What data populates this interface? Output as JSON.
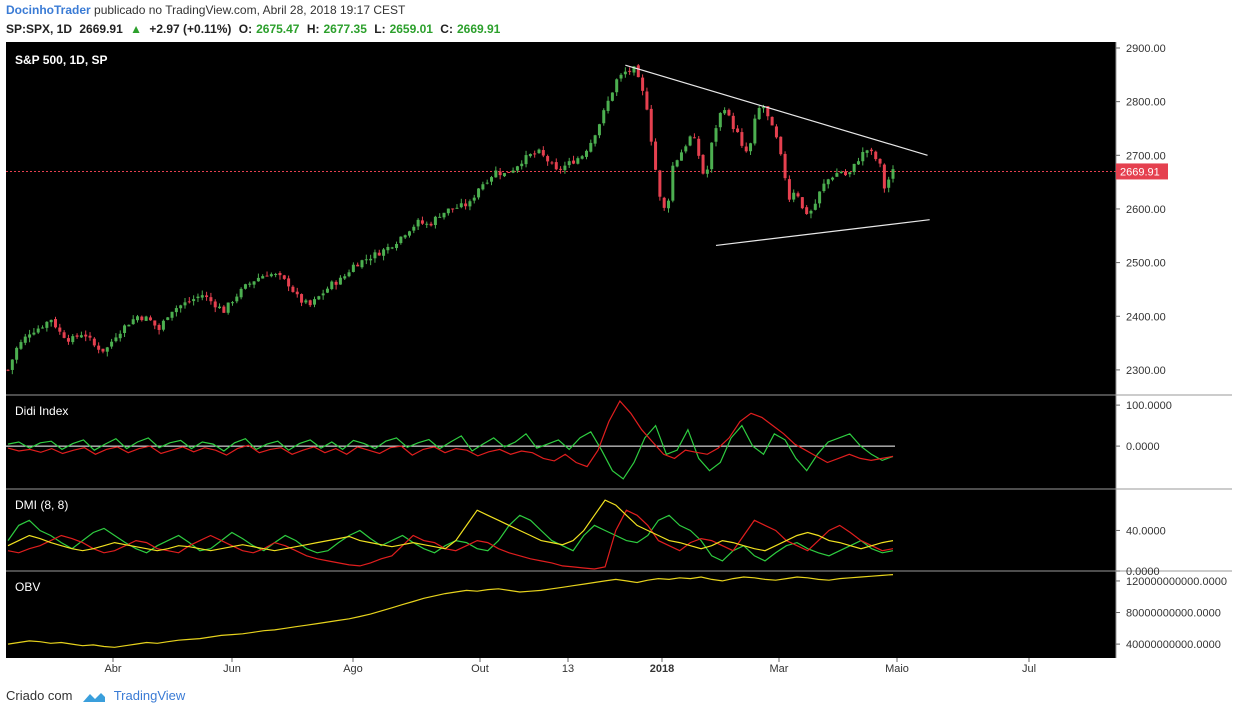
{
  "header": {
    "author": "DocinhoTrader",
    "published": "publicado no TradingView.com, Abril 28, 2018 19:17 CEST",
    "symbol": "SP:SPX, 1D",
    "last": "2669.91",
    "change": "+2.97 (+0.11%)",
    "open_label": "O:",
    "open": "2675.47",
    "high_label": "H:",
    "high": "2677.35",
    "low_label": "L:",
    "low": "2659.01",
    "close_label": "C:",
    "close": "2669.91"
  },
  "footer": {
    "created": "Criado com",
    "brand": "TradingView"
  },
  "colors": {
    "up": "#4caf50",
    "down": "#e5404f",
    "didi_green": "#2ecc40",
    "didi_red": "#e01e1e",
    "dmi_yellow": "#f0e020",
    "obv": "#e6d21c",
    "bg": "#000000"
  },
  "chart_data": [
    {
      "type": "candlestick",
      "title": "S&P 500, 1D, SP",
      "x_ticks": [
        "Abr",
        "Jun",
        "Ago",
        "Out",
        "13",
        "2018",
        "Mar",
        "Maio",
        "Jul"
      ],
      "y_ticks": [
        "2900.00",
        "2800.00",
        "2700.00",
        "2600.00",
        "2500.00",
        "2400.00",
        "2300.00"
      ],
      "ylim": [
        2270,
        2900
      ],
      "last_price_label": "2669.91",
      "last_price": 2669.91,
      "close_path": [
        [
          0,
          2300
        ],
        [
          8,
          2340
        ],
        [
          20,
          2370
        ],
        [
          30,
          2380
        ],
        [
          40,
          2395
        ],
        [
          48,
          2370
        ],
        [
          58,
          2355
        ],
        [
          70,
          2370
        ],
        [
          80,
          2345
        ],
        [
          90,
          2335
        ],
        [
          100,
          2365
        ],
        [
          110,
          2385
        ],
        [
          120,
          2400
        ],
        [
          130,
          2395
        ],
        [
          140,
          2375
        ],
        [
          150,
          2410
        ],
        [
          160,
          2420
        ],
        [
          170,
          2430
        ],
        [
          180,
          2440
        ],
        [
          190,
          2425
        ],
        [
          200,
          2410
        ],
        [
          210,
          2435
        ],
        [
          220,
          2455
        ],
        [
          230,
          2470
        ],
        [
          240,
          2480
        ],
        [
          250,
          2475
        ],
        [
          260,
          2460
        ],
        [
          270,
          2430
        ],
        [
          280,
          2420
        ],
        [
          290,
          2440
        ],
        [
          300,
          2460
        ],
        [
          310,
          2470
        ],
        [
          320,
          2495
        ],
        [
          330,
          2505
        ],
        [
          340,
          2515
        ],
        [
          350,
          2525
        ],
        [
          360,
          2540
        ],
        [
          370,
          2560
        ],
        [
          380,
          2575
        ],
        [
          390,
          2570
        ],
        [
          400,
          2590
        ],
        [
          410,
          2600
        ],
        [
          420,
          2605
        ],
        [
          428,
          2610
        ],
        [
          436,
          2640
        ],
        [
          444,
          2655
        ],
        [
          452,
          2670
        ],
        [
          460,
          2665
        ],
        [
          468,
          2675
        ],
        [
          476,
          2690
        ],
        [
          484,
          2700
        ],
        [
          492,
          2705
        ],
        [
          500,
          2690
        ],
        [
          508,
          2670
        ],
        [
          516,
          2680
        ],
        [
          524,
          2690
        ],
        [
          532,
          2700
        ],
        [
          540,
          2725
        ],
        [
          548,
          2760
        ],
        [
          556,
          2800
        ],
        [
          564,
          2840
        ],
        [
          572,
          2855
        ],
        [
          580,
          2860
        ],
        [
          586,
          2830
        ],
        [
          592,
          2790
        ],
        [
          598,
          2700
        ],
        [
          604,
          2620
        ],
        [
          610,
          2590
        ],
        [
          616,
          2680
        ],
        [
          622,
          2700
        ],
        [
          628,
          2720
        ],
        [
          634,
          2740
        ],
        [
          640,
          2700
        ],
        [
          646,
          2650
        ],
        [
          652,
          2720
        ],
        [
          658,
          2770
        ],
        [
          664,
          2790
        ],
        [
          670,
          2760
        ],
        [
          676,
          2740
        ],
        [
          682,
          2700
        ],
        [
          688,
          2720
        ],
        [
          694,
          2785
        ],
        [
          700,
          2790
        ],
        [
          706,
          2760
        ],
        [
          712,
          2730
        ],
        [
          718,
          2680
        ],
        [
          724,
          2620
        ],
        [
          730,
          2640
        ],
        [
          736,
          2600
        ],
        [
          742,
          2590
        ],
        [
          748,
          2610
        ],
        [
          754,
          2640
        ],
        [
          760,
          2655
        ],
        [
          766,
          2665
        ],
        [
          772,
          2670
        ],
        [
          778,
          2660
        ],
        [
          784,
          2680
        ],
        [
          790,
          2700
        ],
        [
          796,
          2710
        ],
        [
          802,
          2700
        ],
        [
          808,
          2680
        ],
        [
          812,
          2640
        ],
        [
          816,
          2655
        ],
        [
          820,
          2670
        ]
      ],
      "trendlines": [
        {
          "from": [
            572,
            2868
          ],
          "to": [
            852,
            2700
          ]
        },
        {
          "from": [
            656,
            2532
          ],
          "to": [
            854,
            2580
          ]
        }
      ]
    },
    {
      "type": "line",
      "title": "Didi Index",
      "y_ticks": [
        "100.0000",
        "0.0000"
      ],
      "ylim": [
        -90,
        110
      ],
      "series": [
        {
          "color": "#2ecc40",
          "values": [
            5,
            10,
            -5,
            8,
            12,
            -8,
            6,
            15,
            -10,
            5,
            18,
            -6,
            10,
            20,
            -4,
            8,
            14,
            -6,
            10,
            5,
            -12,
            8,
            18,
            -8,
            5,
            12,
            -10,
            6,
            15,
            -5,
            10,
            -8,
            14,
            6,
            -6,
            12,
            20,
            -3,
            8,
            16,
            -6,
            10,
            25,
            -12,
            5,
            20,
            -2,
            10,
            30,
            -5,
            5,
            15,
            -8,
            20,
            35,
            -10,
            -60,
            -80,
            -40,
            20,
            50,
            -20,
            -10,
            40,
            -30,
            -60,
            -40,
            20,
            50,
            0,
            -20,
            30,
            15,
            -30,
            -60,
            -20,
            10,
            20,
            30,
            0,
            -20,
            -35,
            -25
          ]
        },
        {
          "color": "#e01e1e",
          "values": [
            -5,
            -12,
            -8,
            -15,
            -6,
            -18,
            -10,
            -4,
            -20,
            -8,
            -2,
            -16,
            -6,
            0,
            -18,
            -10,
            -2,
            -14,
            -4,
            -10,
            -22,
            -6,
            2,
            -16,
            -8,
            -4,
            -20,
            -10,
            -2,
            -16,
            -6,
            -20,
            -2,
            -10,
            -18,
            -4,
            0,
            -22,
            -8,
            -2,
            -16,
            -6,
            -10,
            -24,
            -14,
            -8,
            -20,
            -12,
            -16,
            -30,
            -36,
            -20,
            -40,
            -50,
            -10,
            60,
            110,
            80,
            40,
            10,
            -20,
            -30,
            -10,
            -15,
            -20,
            -5,
            20,
            60,
            80,
            70,
            50,
            30,
            5,
            -10,
            -25,
            -40,
            -30,
            -20,
            -30,
            -35,
            -30,
            -25
          ]
        }
      ],
      "zero_line_color": "#ffffff"
    },
    {
      "type": "line",
      "title": "DMI (8, 8)",
      "y_ticks": [
        "40.0000",
        "0.0000"
      ],
      "ylim": [
        0,
        75
      ],
      "series": [
        {
          "color": "#2ecc40",
          "values": [
            30,
            45,
            50,
            40,
            35,
            28,
            22,
            30,
            38,
            42,
            35,
            28,
            22,
            18,
            25,
            30,
            35,
            28,
            20,
            22,
            30,
            38,
            32,
            25,
            20,
            28,
            35,
            30,
            22,
            18,
            20,
            28,
            35,
            40,
            32,
            25,
            30,
            35,
            28,
            22,
            18,
            25,
            30,
            28,
            22,
            20,
            30,
            45,
            55,
            50,
            40,
            30,
            25,
            20,
            35,
            45,
            40,
            35,
            30,
            28,
            35,
            50,
            55,
            45,
            40,
            30,
            15,
            10,
            20,
            25,
            15,
            10,
            18,
            25,
            28,
            22,
            18,
            15,
            20,
            25,
            30,
            22,
            18,
            20
          ]
        },
        {
          "color": "#e01e1e",
          "values": [
            20,
            18,
            22,
            25,
            30,
            35,
            32,
            28,
            22,
            18,
            20,
            25,
            30,
            28,
            22,
            20,
            18,
            25,
            30,
            35,
            30,
            25,
            20,
            18,
            22,
            28,
            25,
            20,
            15,
            12,
            10,
            8,
            6,
            5,
            8,
            12,
            15,
            25,
            35,
            30,
            28,
            22,
            20,
            25,
            30,
            28,
            22,
            18,
            15,
            12,
            10,
            8,
            5,
            4,
            3,
            2,
            4,
            40,
            60,
            55,
            45,
            30,
            25,
            20,
            28,
            32,
            30,
            25,
            20,
            35,
            50,
            45,
            40,
            30,
            25,
            20,
            30,
            40,
            45,
            38,
            30,
            25,
            20,
            22
          ]
        },
        {
          "color": "#f0e020",
          "values": [
            25,
            30,
            35,
            32,
            28,
            25,
            22,
            20,
            22,
            25,
            28,
            26,
            24,
            22,
            20,
            22,
            25,
            24,
            22,
            20,
            22,
            24,
            26,
            24,
            22,
            20,
            22,
            24,
            26,
            28,
            30,
            32,
            34,
            30,
            28,
            26,
            24,
            26,
            28,
            26,
            24,
            22,
            30,
            45,
            60,
            55,
            50,
            45,
            40,
            35,
            30,
            28,
            26,
            30,
            40,
            55,
            70,
            65,
            55,
            45,
            40,
            35,
            30,
            28,
            25,
            22,
            25,
            30,
            28,
            25,
            22,
            20,
            25,
            30,
            35,
            38,
            35,
            30,
            28,
            25,
            22,
            25,
            28,
            30
          ]
        }
      ]
    },
    {
      "type": "line",
      "title": "OBV",
      "y_ticks": [
        "120000000000.0000",
        "80000000000.0000",
        "40000000000.0000"
      ],
      "ylim": [
        30000000000,
        125000000000
      ],
      "series": [
        {
          "color": "#e6d21c",
          "values": [
            40,
            42,
            44,
            43,
            41,
            42,
            40,
            38,
            39,
            37,
            36,
            38,
            40,
            42,
            41,
            43,
            45,
            46,
            47,
            49,
            51,
            52,
            53,
            55,
            57,
            58,
            60,
            62,
            64,
            66,
            68,
            70,
            72,
            75,
            78,
            82,
            86,
            90,
            94,
            98,
            101,
            104,
            106,
            108,
            107,
            109,
            110,
            108,
            106,
            107,
            108,
            110,
            112,
            114,
            116,
            118,
            120,
            122,
            120,
            118,
            121,
            123,
            122,
            124,
            123,
            125,
            122,
            120,
            123,
            125,
            124,
            122,
            121,
            123,
            125,
            124,
            122,
            121,
            123,
            124,
            125,
            126,
            127,
            128
          ]
        }
      ]
    }
  ]
}
